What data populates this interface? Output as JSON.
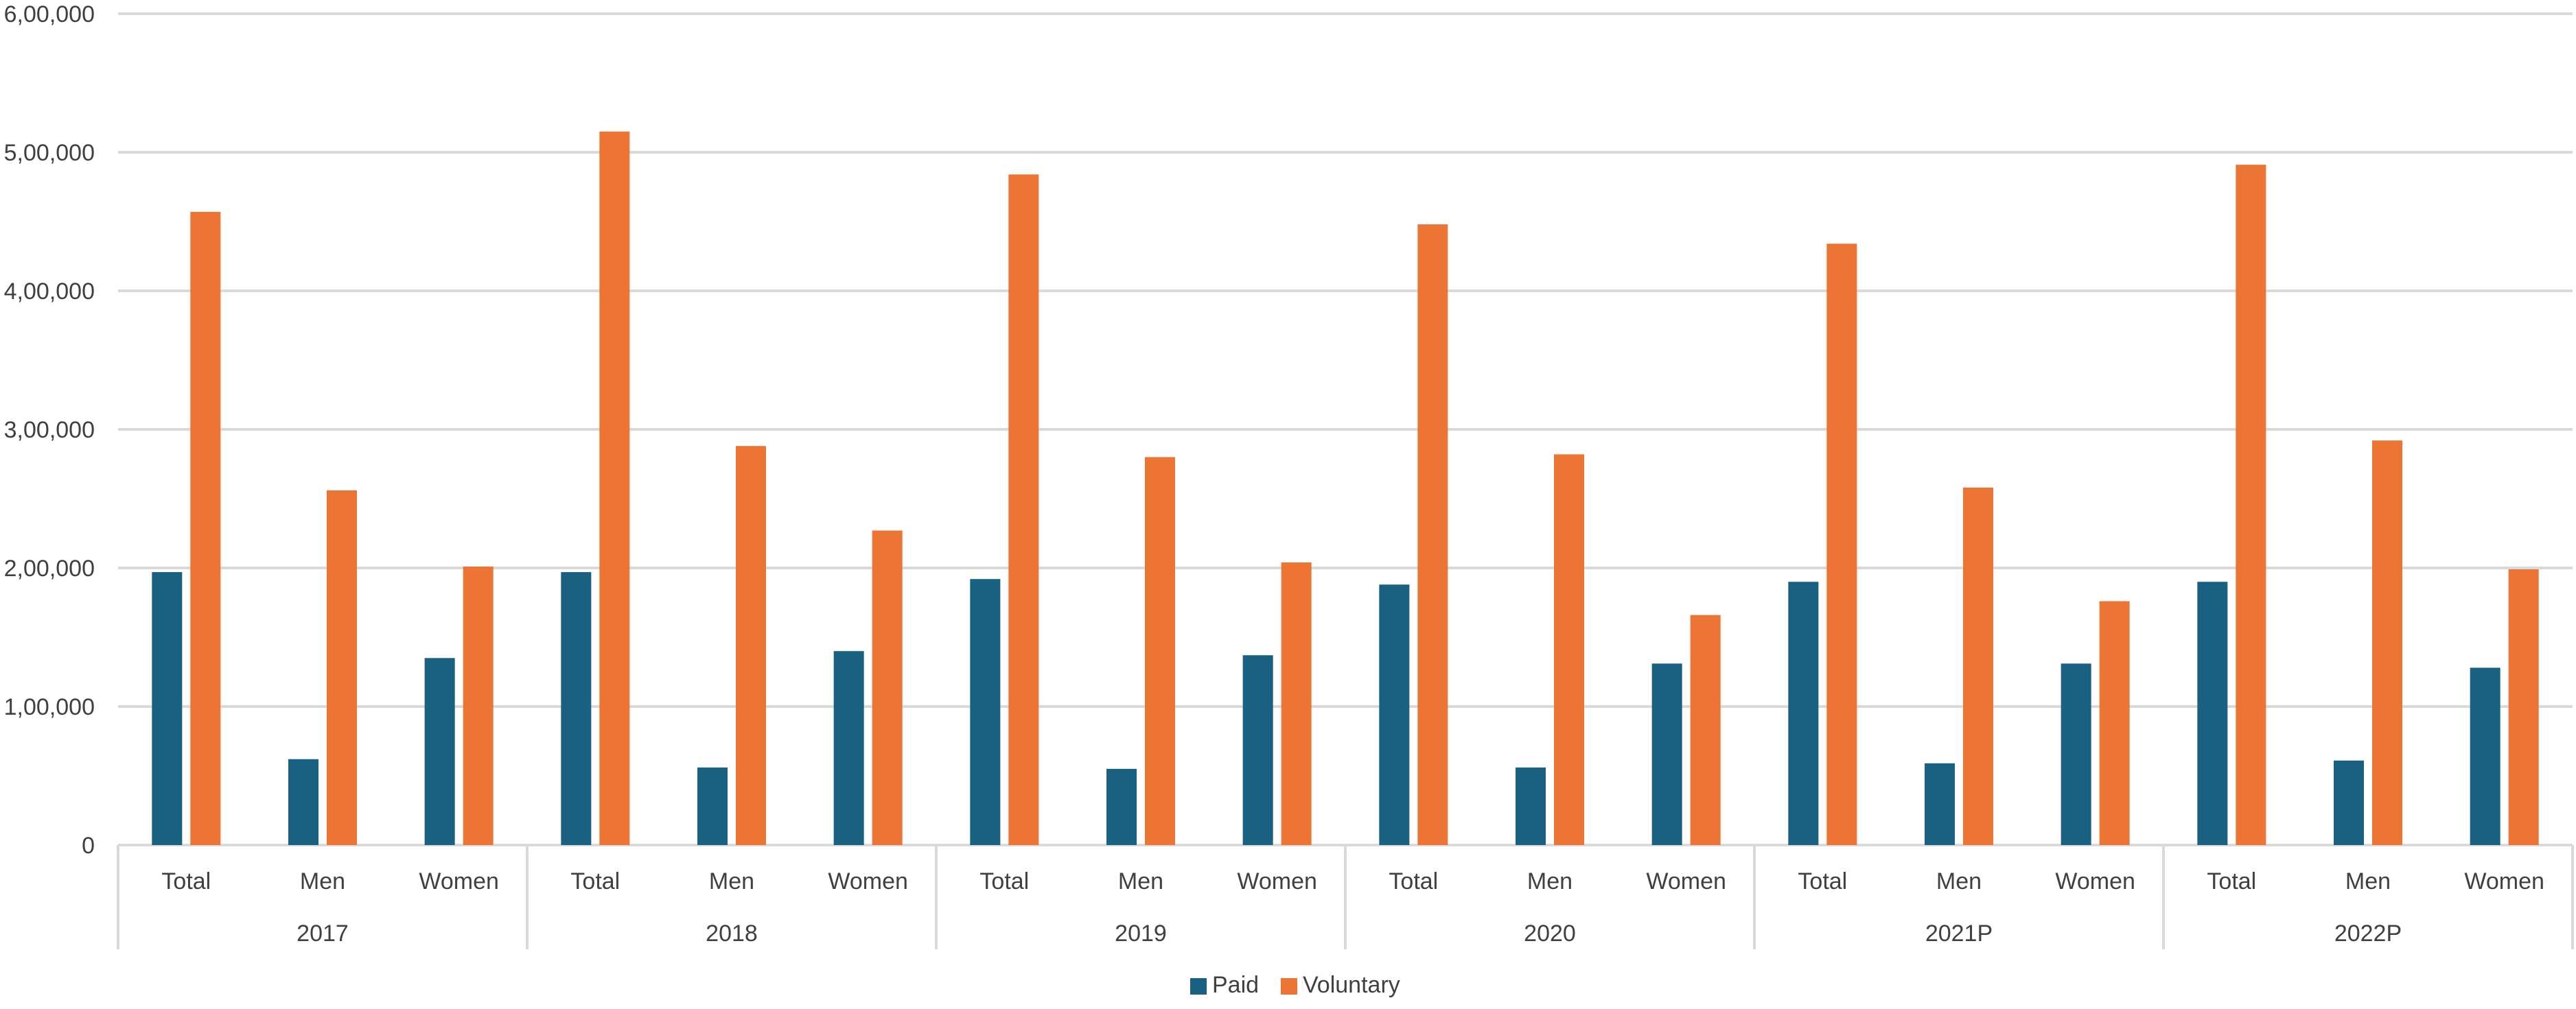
{
  "chart_data": {
    "type": "bar",
    "title": "",
    "xlabel": "",
    "ylabel": "",
    "ylim": [
      0,
      600000
    ],
    "yticks": [
      0,
      100000,
      200000,
      300000,
      400000,
      500000,
      600000
    ],
    "ytick_labels": [
      "0",
      "1,00,000",
      "2,00,000",
      "3,00,000",
      "4,00,000",
      "5,00,000",
      "6,00,000"
    ],
    "grid": true,
    "legend_position": "bottom-center",
    "groups": [
      "2017",
      "2018",
      "2019",
      "2020",
      "2021P",
      "2022P"
    ],
    "subcategories": [
      "Total",
      "Men",
      "Women"
    ],
    "series": [
      {
        "name": "Paid",
        "color": "#1a6080",
        "values": [
          [
            197000,
            62000,
            135000
          ],
          [
            197000,
            56000,
            140000
          ],
          [
            192000,
            55000,
            137000
          ],
          [
            188000,
            56000,
            131000
          ],
          [
            190000,
            59000,
            131000
          ],
          [
            190000,
            61000,
            128000
          ]
        ]
      },
      {
        "name": "Voluntary",
        "color": "#ec7434",
        "values": [
          [
            457000,
            256000,
            201000
          ],
          [
            515000,
            288000,
            227000
          ],
          [
            484000,
            280000,
            204000
          ],
          [
            448000,
            282000,
            166000
          ],
          [
            434000,
            258000,
            176000
          ],
          [
            491000,
            292000,
            199000
          ]
        ]
      }
    ]
  },
  "colors": {
    "grid": "#d9d9d9",
    "axis": "#d9d9d9",
    "text": "#404040"
  }
}
